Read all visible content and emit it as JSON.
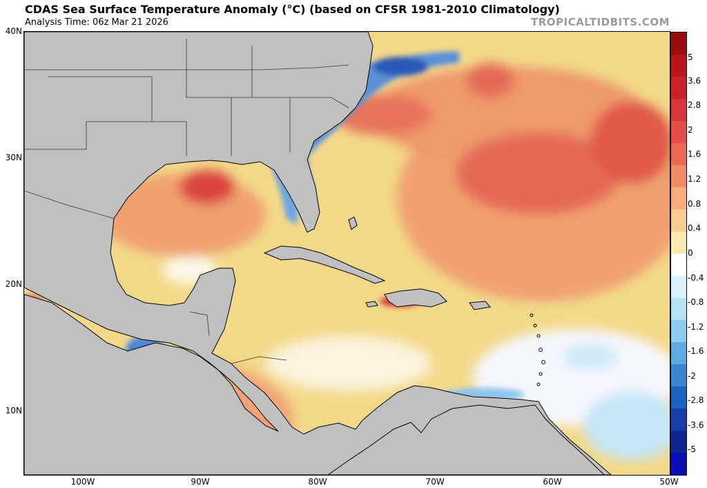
{
  "header": {
    "title": "CDAS Sea Surface Temperature Anomaly (°C) (based on CFSR 1981-2010 Climatology)",
    "analysis_time": "Analysis Time: 06z Mar 21 2026",
    "credit": "TROPICALTIDBITS.COM"
  },
  "map": {
    "lat_labels": [
      "40N",
      "30N",
      "20N",
      "10N"
    ],
    "lon_labels": [
      "100W",
      "90W",
      "80W",
      "70W",
      "60W",
      "50W"
    ],
    "extent": {
      "lon_min": -105,
      "lon_max": -50,
      "lat_min": 5,
      "lat_max": 40
    }
  },
  "colorbar": {
    "labels": [
      "5",
      "3.6",
      "2.8",
      "2",
      "1.6",
      "1.2",
      "0.8",
      "0.4",
      "0",
      "-0.4",
      "-0.8",
      "-1.2",
      "-1.6",
      "-2",
      "-2.8",
      "-3.6",
      "-5"
    ],
    "colors": [
      "#9b0d0d",
      "#b5161a",
      "#c82228",
      "#d8363b",
      "#e34f45",
      "#ec6a53",
      "#f28c66",
      "#f5ad7b",
      "#f8cd8f",
      "#fbe9ae",
      "#ffffff",
      "#d9f1fb",
      "#b6e2f6",
      "#8ccbee",
      "#5ea9e2",
      "#3a84d2",
      "#1f5fc0",
      "#1440a8",
      "#0c2590",
      "#0a0fb5"
    ]
  },
  "colors": {
    "land": "#c0c0c0",
    "ocean_base": "#f2d98a"
  }
}
